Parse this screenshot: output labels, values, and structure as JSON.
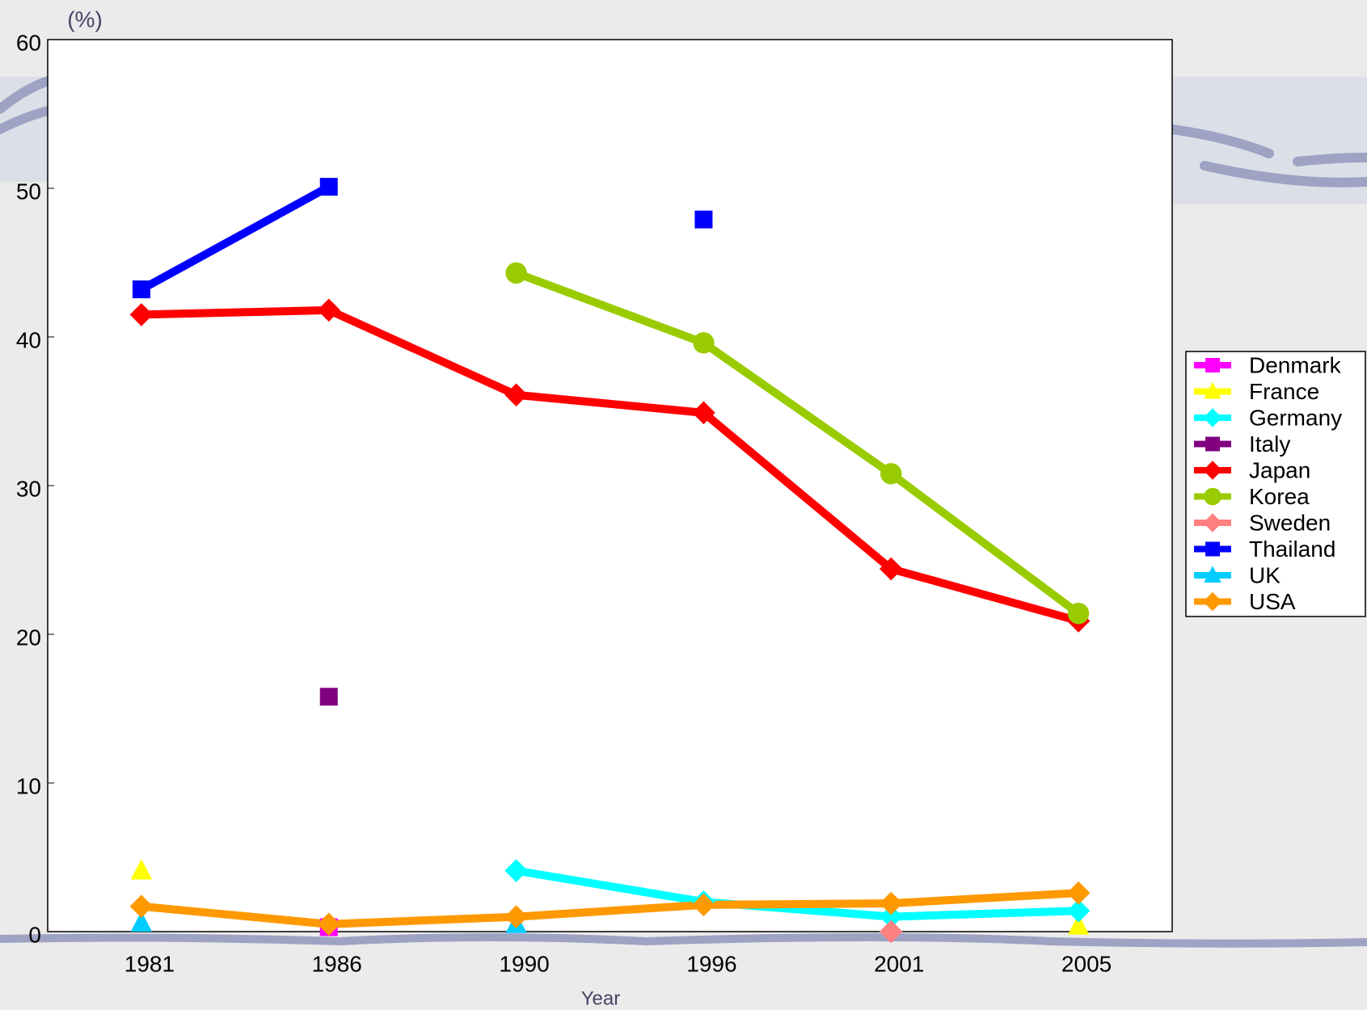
{
  "chart_data": {
    "type": "line",
    "y_label": "(%)",
    "x_label": "Year",
    "categories": [
      "1981",
      "1986",
      "1990",
      "1996",
      "2001",
      "2005"
    ],
    "ylim": [
      0,
      60
    ],
    "yticks": [
      0,
      10,
      20,
      30,
      40,
      50,
      60
    ],
    "legend": "right",
    "series": [
      {
        "name": "Denmark",
        "color": "#ff00ff",
        "marker": "square",
        "values": [
          null,
          0.3,
          null,
          null,
          null,
          null
        ]
      },
      {
        "name": "France",
        "color": "#ffff00",
        "marker": "triangle",
        "values": [
          4.1,
          null,
          null,
          null,
          null,
          0.4
        ]
      },
      {
        "name": "Germany",
        "color": "#00ffff",
        "marker": "diamond",
        "values": [
          null,
          null,
          4.1,
          2.0,
          1.0,
          1.4
        ]
      },
      {
        "name": "Italy",
        "color": "#800080",
        "marker": "square",
        "values": [
          null,
          15.8,
          null,
          null,
          null,
          null
        ]
      },
      {
        "name": "Japan",
        "color": "#ff0000",
        "marker": "diamond",
        "values": [
          41.5,
          41.8,
          36.1,
          34.9,
          24.4,
          20.9
        ]
      },
      {
        "name": "Korea",
        "color": "#99cc00",
        "marker": "circle",
        "values": [
          null,
          null,
          44.3,
          39.6,
          30.8,
          21.4
        ]
      },
      {
        "name": "Sweden",
        "color": "#ff8080",
        "marker": "diamond",
        "values": [
          null,
          null,
          null,
          null,
          0,
          null
        ]
      },
      {
        "name": "Thailand",
        "color": "#0000ff",
        "marker": "square",
        "values": [
          43.2,
          50.1,
          null,
          47.9,
          null,
          null
        ]
      },
      {
        "name": "UK",
        "color": "#00ccff",
        "marker": "triangle",
        "values": [
          0.6,
          null,
          0.5,
          null,
          null,
          null
        ]
      },
      {
        "name": "USA",
        "color": "#ff9900",
        "marker": "diamond",
        "values": [
          1.7,
          0.5,
          1.0,
          1.8,
          1.9,
          2.6
        ]
      }
    ]
  }
}
